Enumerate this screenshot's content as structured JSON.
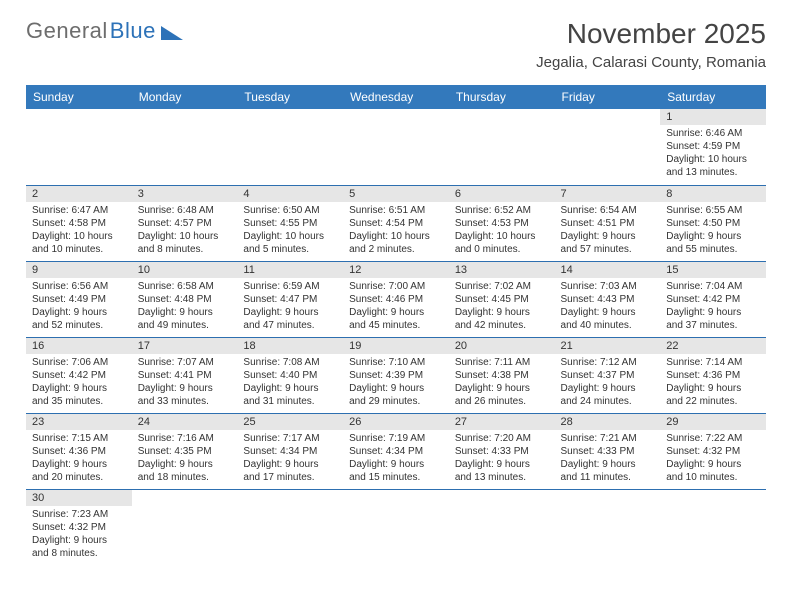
{
  "logo": {
    "text1": "General",
    "text2": "Blue",
    "triangle_color": "#2d72b8"
  },
  "title": "November 2025",
  "location": "Jegalia, Calarasi County, Romania",
  "header_bg": "#3379bc",
  "daynum_bg": "#e6e6e6",
  "row_border": "#2d6fb0",
  "weekdays": [
    "Sunday",
    "Monday",
    "Tuesday",
    "Wednesday",
    "Thursday",
    "Friday",
    "Saturday"
  ],
  "weeks": [
    [
      null,
      null,
      null,
      null,
      null,
      null,
      {
        "n": "1",
        "sr": "Sunrise: 6:46 AM",
        "ss": "Sunset: 4:59 PM",
        "dl": "Daylight: 10 hours and 13 minutes."
      }
    ],
    [
      {
        "n": "2",
        "sr": "Sunrise: 6:47 AM",
        "ss": "Sunset: 4:58 PM",
        "dl": "Daylight: 10 hours and 10 minutes."
      },
      {
        "n": "3",
        "sr": "Sunrise: 6:48 AM",
        "ss": "Sunset: 4:57 PM",
        "dl": "Daylight: 10 hours and 8 minutes."
      },
      {
        "n": "4",
        "sr": "Sunrise: 6:50 AM",
        "ss": "Sunset: 4:55 PM",
        "dl": "Daylight: 10 hours and 5 minutes."
      },
      {
        "n": "5",
        "sr": "Sunrise: 6:51 AM",
        "ss": "Sunset: 4:54 PM",
        "dl": "Daylight: 10 hours and 2 minutes."
      },
      {
        "n": "6",
        "sr": "Sunrise: 6:52 AM",
        "ss": "Sunset: 4:53 PM",
        "dl": "Daylight: 10 hours and 0 minutes."
      },
      {
        "n": "7",
        "sr": "Sunrise: 6:54 AM",
        "ss": "Sunset: 4:51 PM",
        "dl": "Daylight: 9 hours and 57 minutes."
      },
      {
        "n": "8",
        "sr": "Sunrise: 6:55 AM",
        "ss": "Sunset: 4:50 PM",
        "dl": "Daylight: 9 hours and 55 minutes."
      }
    ],
    [
      {
        "n": "9",
        "sr": "Sunrise: 6:56 AM",
        "ss": "Sunset: 4:49 PM",
        "dl": "Daylight: 9 hours and 52 minutes."
      },
      {
        "n": "10",
        "sr": "Sunrise: 6:58 AM",
        "ss": "Sunset: 4:48 PM",
        "dl": "Daylight: 9 hours and 49 minutes."
      },
      {
        "n": "11",
        "sr": "Sunrise: 6:59 AM",
        "ss": "Sunset: 4:47 PM",
        "dl": "Daylight: 9 hours and 47 minutes."
      },
      {
        "n": "12",
        "sr": "Sunrise: 7:00 AM",
        "ss": "Sunset: 4:46 PM",
        "dl": "Daylight: 9 hours and 45 minutes."
      },
      {
        "n": "13",
        "sr": "Sunrise: 7:02 AM",
        "ss": "Sunset: 4:45 PM",
        "dl": "Daylight: 9 hours and 42 minutes."
      },
      {
        "n": "14",
        "sr": "Sunrise: 7:03 AM",
        "ss": "Sunset: 4:43 PM",
        "dl": "Daylight: 9 hours and 40 minutes."
      },
      {
        "n": "15",
        "sr": "Sunrise: 7:04 AM",
        "ss": "Sunset: 4:42 PM",
        "dl": "Daylight: 9 hours and 37 minutes."
      }
    ],
    [
      {
        "n": "16",
        "sr": "Sunrise: 7:06 AM",
        "ss": "Sunset: 4:42 PM",
        "dl": "Daylight: 9 hours and 35 minutes."
      },
      {
        "n": "17",
        "sr": "Sunrise: 7:07 AM",
        "ss": "Sunset: 4:41 PM",
        "dl": "Daylight: 9 hours and 33 minutes."
      },
      {
        "n": "18",
        "sr": "Sunrise: 7:08 AM",
        "ss": "Sunset: 4:40 PM",
        "dl": "Daylight: 9 hours and 31 minutes."
      },
      {
        "n": "19",
        "sr": "Sunrise: 7:10 AM",
        "ss": "Sunset: 4:39 PM",
        "dl": "Daylight: 9 hours and 29 minutes."
      },
      {
        "n": "20",
        "sr": "Sunrise: 7:11 AM",
        "ss": "Sunset: 4:38 PM",
        "dl": "Daylight: 9 hours and 26 minutes."
      },
      {
        "n": "21",
        "sr": "Sunrise: 7:12 AM",
        "ss": "Sunset: 4:37 PM",
        "dl": "Daylight: 9 hours and 24 minutes."
      },
      {
        "n": "22",
        "sr": "Sunrise: 7:14 AM",
        "ss": "Sunset: 4:36 PM",
        "dl": "Daylight: 9 hours and 22 minutes."
      }
    ],
    [
      {
        "n": "23",
        "sr": "Sunrise: 7:15 AM",
        "ss": "Sunset: 4:36 PM",
        "dl": "Daylight: 9 hours and 20 minutes."
      },
      {
        "n": "24",
        "sr": "Sunrise: 7:16 AM",
        "ss": "Sunset: 4:35 PM",
        "dl": "Daylight: 9 hours and 18 minutes."
      },
      {
        "n": "25",
        "sr": "Sunrise: 7:17 AM",
        "ss": "Sunset: 4:34 PM",
        "dl": "Daylight: 9 hours and 17 minutes."
      },
      {
        "n": "26",
        "sr": "Sunrise: 7:19 AM",
        "ss": "Sunset: 4:34 PM",
        "dl": "Daylight: 9 hours and 15 minutes."
      },
      {
        "n": "27",
        "sr": "Sunrise: 7:20 AM",
        "ss": "Sunset: 4:33 PM",
        "dl": "Daylight: 9 hours and 13 minutes."
      },
      {
        "n": "28",
        "sr": "Sunrise: 7:21 AM",
        "ss": "Sunset: 4:33 PM",
        "dl": "Daylight: 9 hours and 11 minutes."
      },
      {
        "n": "29",
        "sr": "Sunrise: 7:22 AM",
        "ss": "Sunset: 4:32 PM",
        "dl": "Daylight: 9 hours and 10 minutes."
      }
    ],
    [
      {
        "n": "30",
        "sr": "Sunrise: 7:23 AM",
        "ss": "Sunset: 4:32 PM",
        "dl": "Daylight: 9 hours and 8 minutes."
      },
      null,
      null,
      null,
      null,
      null,
      null
    ]
  ]
}
